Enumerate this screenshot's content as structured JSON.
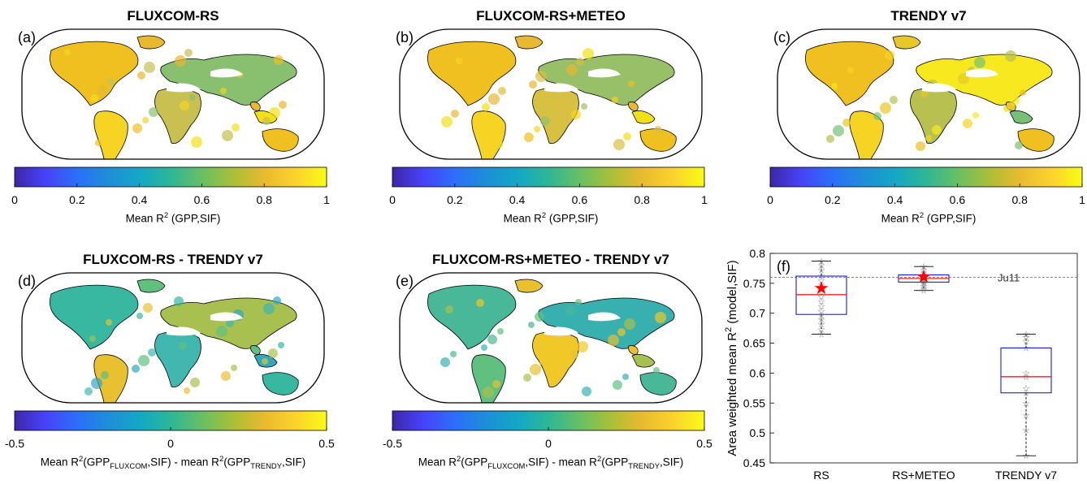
{
  "panels": [
    {
      "label": "(a)",
      "title": "FLUXCOM-RS",
      "cb_ticks": [
        "0",
        "0.2",
        "0.4",
        "0.6",
        "0.8",
        "1"
      ],
      "cb_label": {
        "pre": "Mean R",
        "sup": "2",
        "post": " (GPP,SIF)"
      }
    },
    {
      "label": "(b)",
      "title": "FLUXCOM-RS+METEO",
      "cb_ticks": [
        "0",
        "0.2",
        "0.4",
        "0.6",
        "0.8",
        "1"
      ],
      "cb_label": {
        "pre": "Mean R",
        "sup": "2",
        "post": " (GPP,SIF)"
      }
    },
    {
      "label": "(c)",
      "title": "TRENDY v7",
      "cb_ticks": [
        "0",
        "0.2",
        "0.4",
        "0.6",
        "0.8",
        "1"
      ],
      "cb_label": {
        "pre": "Mean R",
        "sup": "2",
        "post": " (GPP,SIF)"
      }
    },
    {
      "label": "(d)",
      "title": "FLUXCOM-RS - TRENDY v7",
      "cb_ticks": [
        "-0.5",
        "0",
        "0.5"
      ],
      "cb_label": {
        "a": "Mean R",
        "b": "2",
        "c": "(GPP",
        "d": "FLUXCOM",
        "e": ",SIF) - mean R",
        "f": "2",
        "g": "(GPP",
        "h": "TRENDY",
        "i": ",SIF)"
      }
    },
    {
      "label": "(e)",
      "title": "FLUXCOM-RS+METEO - TRENDY v7",
      "cb_ticks": [
        "-0.5",
        "0",
        "0.5"
      ],
      "cb_label": {
        "a": "Mean R",
        "b": "2",
        "c": "(GPP",
        "d": "FLUXCOM",
        "e": ",SIF) - mean R",
        "f": "2",
        "g": "(GPP",
        "h": "TRENDY",
        "i": ",SIF)"
      }
    }
  ],
  "colormap": [
    "#3e26a8",
    "#4743f8",
    "#2b6ff9",
    "#1e8ed8",
    "#14a7c5",
    "#2db796",
    "#66c064",
    "#a9bf38",
    "#e8ba2f",
    "#fcd22d",
    "#f9fb15"
  ],
  "map_palettes": {
    "a": [
      "#f0c020",
      "#e8b830",
      "#f6d424",
      "#c8c050",
      "#88c070",
      "#f4e018"
    ],
    "b": [
      "#f0c020",
      "#e8b830",
      "#f6d424",
      "#d8c040",
      "#98c068",
      "#f4e018"
    ],
    "c": [
      "#f0c020",
      "#e8c828",
      "#f6d424",
      "#b8c050",
      "#f8e820",
      "#78c078"
    ],
    "d": [
      "#38b8a0",
      "#60c080",
      "#e8c030",
      "#40b8b0",
      "#a8c050",
      "#30a8c0"
    ],
    "e": [
      "#48b898",
      "#e8c030",
      "#60c080",
      "#f0c828",
      "#38b0b0",
      "#a8c050"
    ]
  },
  "f_panel": {
    "label": "(f)",
    "ref_label": "Ju11",
    "ylabel": {
      "pre": "Area weighted mean R",
      "sup": "2",
      "post": " (model,SIF)"
    }
  },
  "chart_data": {
    "type": "box",
    "categories": [
      "RS",
      "RS+METEO",
      "TRENDY v7"
    ],
    "ylabel": "Area weighted mean R2 (model,SIF)",
    "ylim": [
      0.45,
      0.8
    ],
    "yticks": [
      "0.45",
      "0.5",
      "0.55",
      "0.6",
      "0.65",
      "0.7",
      "0.75",
      "0.8"
    ],
    "reference_line": {
      "value": 0.76,
      "label": "Ju11"
    },
    "boxes": [
      {
        "category": "RS",
        "whisker_low": 0.665,
        "q1": 0.698,
        "median": 0.731,
        "q3": 0.762,
        "whisker_high": 0.787,
        "marker": 0.743,
        "points": [
          0.787,
          0.78,
          0.772,
          0.763,
          0.755,
          0.748,
          0.742,
          0.735,
          0.728,
          0.72,
          0.712,
          0.704,
          0.697,
          0.69,
          0.682,
          0.673,
          0.665
        ]
      },
      {
        "category": "RS+METEO",
        "whisker_low": 0.738,
        "q1": 0.752,
        "median": 0.758,
        "q3": 0.764,
        "whisker_high": 0.778,
        "marker": 0.762,
        "points": [
          0.778,
          0.772,
          0.768,
          0.765,
          0.763,
          0.76,
          0.758,
          0.756,
          0.754,
          0.752,
          0.749,
          0.746,
          0.742,
          0.738
        ]
      },
      {
        "category": "TRENDY v7",
        "whisker_low": 0.462,
        "q1": 0.567,
        "median": 0.594,
        "q3": 0.642,
        "whisker_high": 0.665,
        "points": [
          0.665,
          0.66,
          0.653,
          0.642,
          0.6,
          0.594,
          0.575,
          0.567,
          0.55,
          0.53,
          0.505,
          0.462
        ]
      }
    ]
  }
}
